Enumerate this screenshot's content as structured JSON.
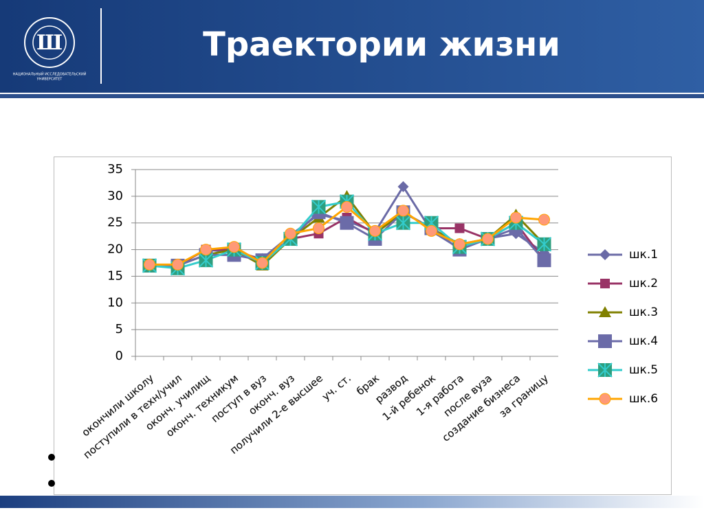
{
  "header": {
    "title": "Траектории жизни",
    "logo_caption": [
      "НАЦИОНАЛЬНЫЙ ИССЛЕДОВАТЕЛЬСКИЙ",
      "УНИВЕРСИТЕТ"
    ]
  },
  "chart_data": {
    "type": "line",
    "categories": [
      "окончили  школу",
      "поступили в техн/учил",
      "оконч. училищ",
      "оконч. техникум",
      "поступ в вуз",
      "оконч. вуз",
      "получили 2-е высшее",
      "уч. ст.",
      "брак",
      "развод",
      "1-й ребенок",
      "1-я работа",
      "после вуза",
      "создание бизнеса",
      "за границу"
    ],
    "ylim": [
      0,
      35
    ],
    "yticks": [
      0,
      5,
      10,
      15,
      20,
      25,
      30,
      35
    ],
    "grid": true,
    "legend": "right",
    "series": [
      {
        "name": "шк.1",
        "color": "#6a6aa6",
        "marker": "diamond",
        "values": [
          17,
          17,
          20,
          19.5,
          18.3,
          22.7,
          26.6,
          25.4,
          23.3,
          31.8,
          23.5,
          20.2,
          22.1,
          23,
          19.4
        ]
      },
      {
        "name": "шк.2",
        "color": "#993366",
        "marker": "square",
        "values": [
          17,
          17,
          20,
          20,
          18,
          22,
          23,
          26,
          23,
          27,
          24,
          24,
          22,
          25,
          18
        ]
      },
      {
        "name": "шк.3",
        "color": "#808000",
        "marker": "triangle",
        "values": [
          17,
          17,
          19,
          20,
          17,
          22,
          26,
          30,
          23,
          27,
          24,
          21,
          22,
          26.5,
          21
        ]
      },
      {
        "name": "шк.4",
        "color": "#6b6ba8",
        "marker": "bigsquare",
        "values": [
          17,
          17,
          19,
          19,
          18,
          22,
          27,
          25,
          22,
          27,
          24,
          20,
          22,
          24,
          18
        ]
      },
      {
        "name": "шк.5",
        "color": "#33cccc",
        "marker": "xsquare",
        "values": [
          17,
          16.5,
          18,
          20,
          17.5,
          22,
          28,
          29,
          23,
          25,
          25,
          20.5,
          22,
          25,
          21
        ]
      },
      {
        "name": "шк.6",
        "color": "#ffa500",
        "marker": "circle",
        "values": [
          17.2,
          17.2,
          20,
          20.5,
          17.5,
          23,
          24,
          28,
          23.5,
          27.3,
          23.5,
          21,
          22,
          26,
          25.6
        ]
      }
    ]
  }
}
